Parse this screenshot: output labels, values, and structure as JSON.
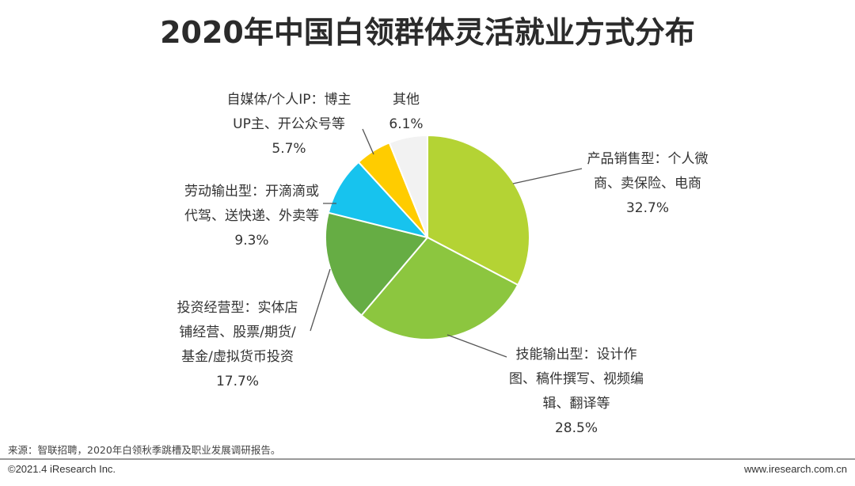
{
  "title": "2020年中国白领群体灵活就业方式分布",
  "chart_data": {
    "type": "pie",
    "slices": [
      {
        "label_lines": [
          "产品销售型：个人微",
          "商、卖保险、电商"
        ],
        "pct_text": "32.7%",
        "value": 32.7,
        "color": "#b4d334"
      },
      {
        "label_lines": [
          "技能输出型：设计作",
          "图、稿件撰写、视频编",
          "辑、翻译等"
        ],
        "pct_text": "28.5%",
        "value": 28.5,
        "color": "#8cc63f"
      },
      {
        "label_lines": [
          "投资经营型：实体店",
          "铺经营、股票/期货/",
          "基金/虚拟货币投资"
        ],
        "pct_text": "17.7%",
        "value": 17.7,
        "color": "#66ad44"
      },
      {
        "label_lines": [
          "劳动输出型：开滴滴或",
          "代驾、送快递、外卖等"
        ],
        "pct_text": "9.3%",
        "value": 9.3,
        "color": "#17c3ee"
      },
      {
        "label_lines": [
          "自媒体/个人IP：博主",
          "UP主、开公众号等"
        ],
        "pct_text": "5.7%",
        "value": 5.7,
        "color": "#ffcc00"
      },
      {
        "label_lines": [
          "其他"
        ],
        "pct_text": "6.1%",
        "value": 6.1,
        "color": "#f2f2f2"
      }
    ]
  },
  "footer": {
    "source": "来源：智联招聘，2020年白领秋季跳槽及职业发展调研报告。",
    "copyright": "©2021.4 iResearch Inc.",
    "website": "www.iresearch.com.cn"
  }
}
